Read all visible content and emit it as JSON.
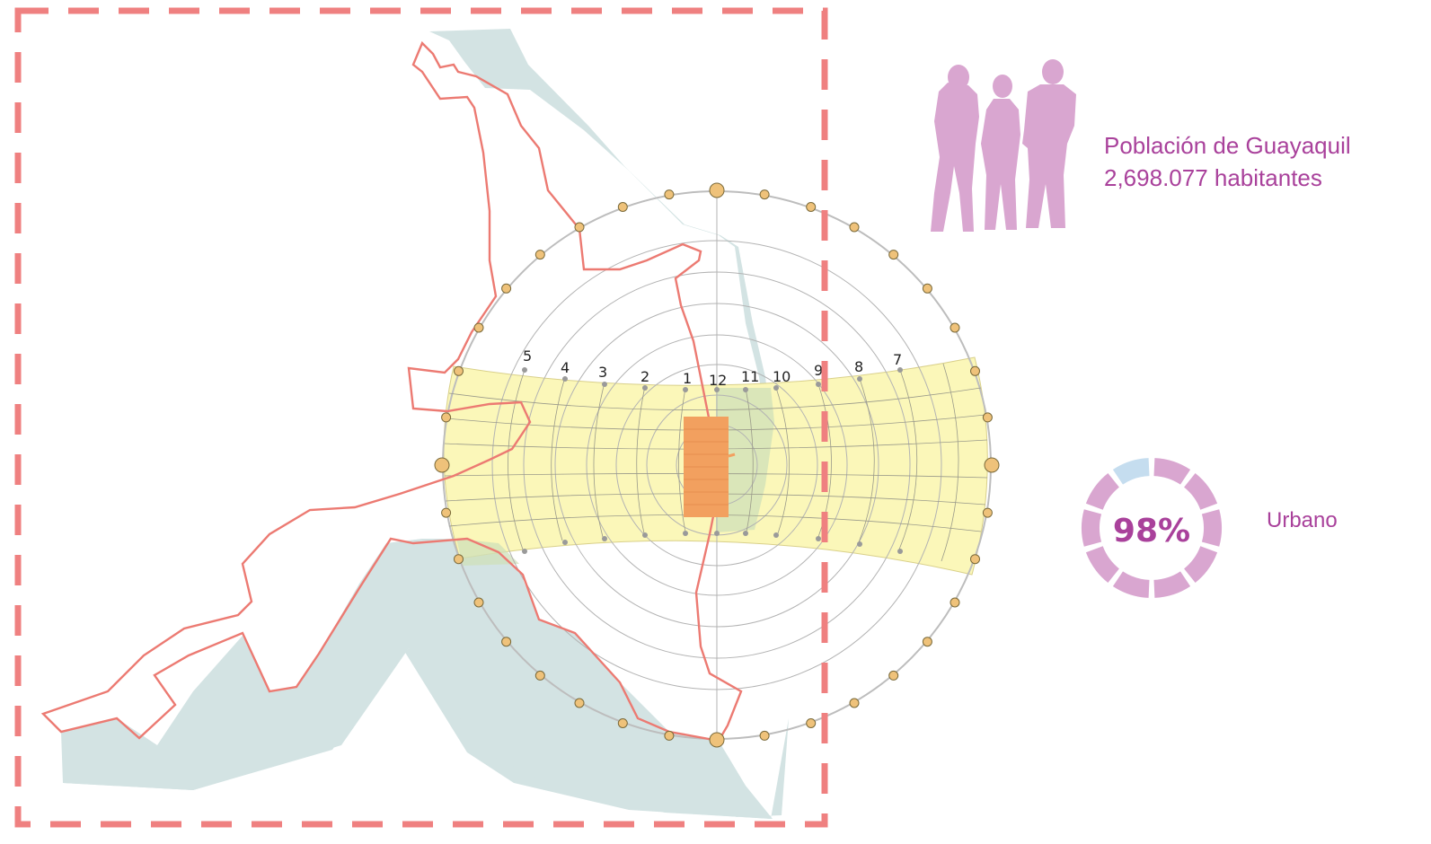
{
  "map": {
    "colors": {
      "frame": "#ef8080",
      "water": "#d3e3e3",
      "city_outline": "#ec7a72",
      "sun_band": "#fbf7b9",
      "building": "#f2a05f",
      "sun_dot": "#efc27a",
      "grid": "#b3b3b3"
    }
  },
  "sun_path": {
    "hour_labels_north": [
      "5",
      "4",
      "3",
      "2",
      "1",
      "12",
      "11",
      "10",
      "9",
      "8",
      "7"
    ]
  },
  "population": {
    "title": "Población de Guayaquil",
    "value": "2,698.077 habitantes",
    "icon": "people-silhouette-icon",
    "color": "#d9a6d0"
  },
  "urban": {
    "percent_text": "98%",
    "percent": 98,
    "label": "Urbano",
    "colors": {
      "urban": "#d9a6d0",
      "rural": "#c5ddef",
      "text": "#a9419b"
    }
  }
}
